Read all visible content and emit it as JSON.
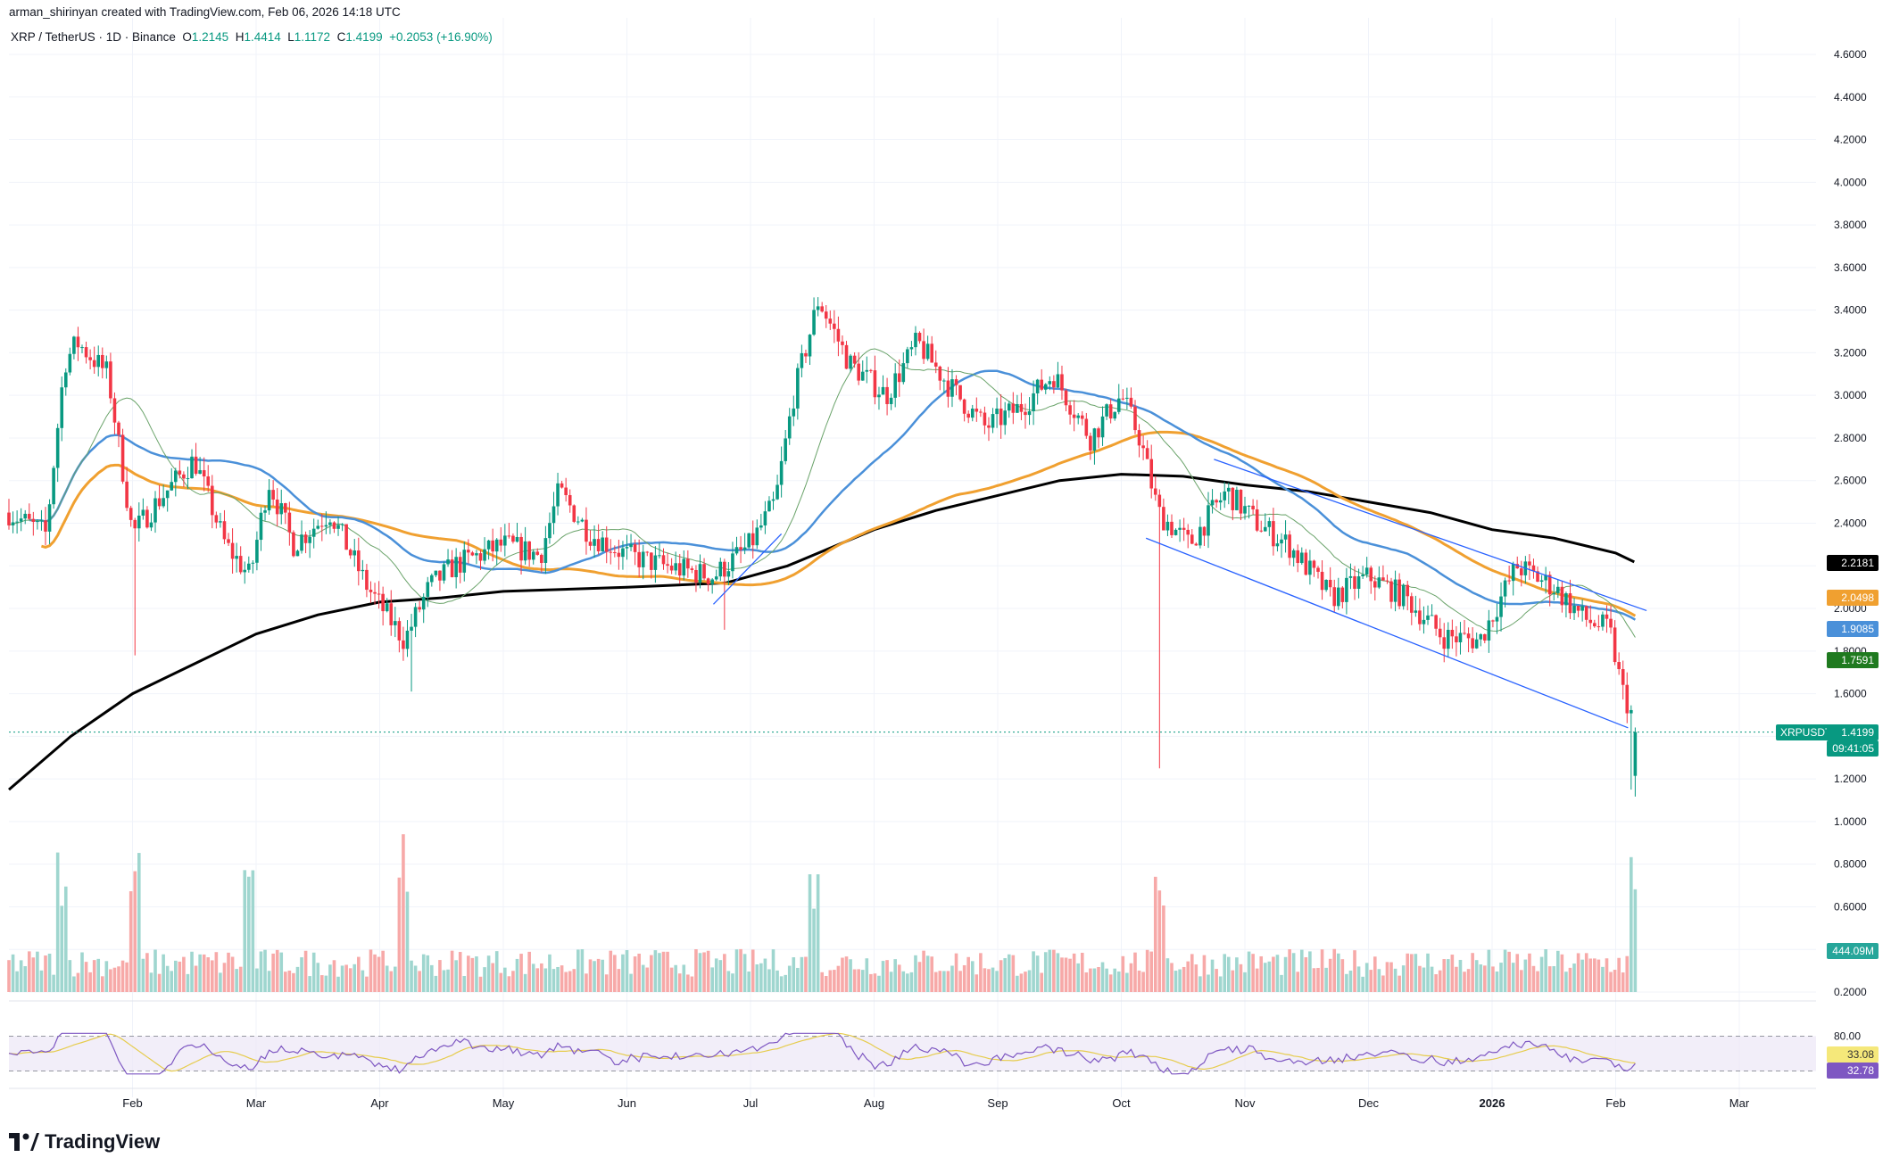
{
  "header": {
    "credit": "arman_shirinyan created with TradingView.com, Feb 06, 2026 14:18 UTC",
    "symbol_line": "XRP / TetherUS · 1D · Binance",
    "open_label": "O",
    "open": "1.2145",
    "high_label": "H",
    "high": "1.4414",
    "low_label": "L",
    "low": "1.1172",
    "close_label": "C",
    "close": "1.4199",
    "change": "+0.2053 (+16.90%)"
  },
  "brand": {
    "name": "TradingView"
  },
  "badges": {
    "ma200": "2.2181",
    "ma100": "2.0498",
    "ma50": "1.9085",
    "ma20": "1.7591",
    "symbol": "XRPUSDT",
    "price": "1.4199",
    "countdown": "09:41:05",
    "volume": "444.09M",
    "rsi_ma": "33.08",
    "rsi": "32.78"
  },
  "colors": {
    "up": "#089981",
    "down": "#f23645",
    "ma20": "#6aa36a",
    "ma50": "#4a90d9",
    "ma100": "#f0a030",
    "ma200": "#000000",
    "channel": "#2962ff",
    "rsi": "#7e57c2",
    "rsi_ma": "#e6cc4d"
  },
  "chart_data": {
    "type": "candlestick",
    "title": "XRP / TetherUS · 1D · Binance",
    "y_axis": {
      "ticks": [
        0.2,
        0.4,
        0.6,
        0.8,
        1.0,
        1.2,
        1.4,
        1.6,
        1.8,
        2.0,
        2.2,
        2.4,
        2.6,
        2.8,
        3.0,
        3.2,
        3.4,
        3.6,
        3.8,
        4.0,
        4.2,
        4.4,
        4.6
      ],
      "tick_labels": [
        "0.2000",
        "0.4000",
        "0.6000",
        "0.8000",
        "1.0000",
        "1.2000",
        "1.4000",
        "1.6000",
        "1.8000",
        "2.0000",
        "2.2000",
        "2.4000",
        "2.6000",
        "2.8000",
        "3.0000",
        "3.2000",
        "3.4000",
        "3.6000",
        "3.8000",
        "4.0000",
        "4.2000",
        "4.4000",
        "4.6000"
      ],
      "range": [
        0.2,
        4.6
      ]
    },
    "x_axis": {
      "tick_labels": [
        "Feb",
        "Mar",
        "Apr",
        "May",
        "Jun",
        "Jul",
        "Aug",
        "Sep",
        "Oct",
        "Nov",
        "Dec",
        "2026",
        "Feb",
        "Mar"
      ],
      "tick_months": [
        1,
        2,
        3,
        4,
        5,
        6,
        7,
        8,
        9,
        10,
        11,
        12,
        13,
        14
      ],
      "range_months": [
        0.0,
        14.5
      ]
    },
    "price_anchors": [
      {
        "m": 0.0,
        "p": 2.45
      },
      {
        "m": 0.3,
        "p": 2.35
      },
      {
        "m": 0.45,
        "p": 3.15
      },
      {
        "m": 0.55,
        "p": 3.25
      },
      {
        "m": 0.8,
        "p": 3.1
      },
      {
        "m": 1.0,
        "p": 2.35
      },
      {
        "m": 1.2,
        "p": 2.5
      },
      {
        "m": 1.5,
        "p": 2.7
      },
      {
        "m": 1.75,
        "p": 2.3
      },
      {
        "m": 1.95,
        "p": 2.15
      },
      {
        "m": 2.1,
        "p": 2.6
      },
      {
        "m": 2.3,
        "p": 2.3
      },
      {
        "m": 2.6,
        "p": 2.45
      },
      {
        "m": 2.9,
        "p": 2.1
      },
      {
        "m": 3.2,
        "p": 1.85
      },
      {
        "m": 3.4,
        "p": 2.1
      },
      {
        "m": 3.6,
        "p": 2.2
      },
      {
        "m": 4.0,
        "p": 2.3
      },
      {
        "m": 4.3,
        "p": 2.25
      },
      {
        "m": 4.45,
        "p": 2.55
      },
      {
        "m": 4.7,
        "p": 2.35
      },
      {
        "m": 5.0,
        "p": 2.25
      },
      {
        "m": 5.3,
        "p": 2.2
      },
      {
        "m": 5.7,
        "p": 2.15
      },
      {
        "m": 6.0,
        "p": 2.3
      },
      {
        "m": 6.2,
        "p": 2.5
      },
      {
        "m": 6.35,
        "p": 3.0
      },
      {
        "m": 6.55,
        "p": 3.45
      },
      {
        "m": 6.8,
        "p": 3.15
      },
      {
        "m": 7.1,
        "p": 3.0
      },
      {
        "m": 7.35,
        "p": 3.25
      },
      {
        "m": 7.6,
        "p": 3.05
      },
      {
        "m": 7.9,
        "p": 2.85
      },
      {
        "m": 8.2,
        "p": 2.95
      },
      {
        "m": 8.45,
        "p": 3.1
      },
      {
        "m": 8.75,
        "p": 2.8
      },
      {
        "m": 9.0,
        "p": 3.0
      },
      {
        "m": 9.15,
        "p": 2.8
      },
      {
        "m": 9.3,
        "p": 2.45
      },
      {
        "m": 9.55,
        "p": 2.3
      },
      {
        "m": 9.85,
        "p": 2.55
      },
      {
        "m": 10.1,
        "p": 2.4
      },
      {
        "m": 10.35,
        "p": 2.3
      },
      {
        "m": 10.7,
        "p": 2.05
      },
      {
        "m": 11.0,
        "p": 2.15
      },
      {
        "m": 11.3,
        "p": 2.05
      },
      {
        "m": 11.6,
        "p": 1.87
      },
      {
        "m": 11.9,
        "p": 1.85
      },
      {
        "m": 12.2,
        "p": 2.2
      },
      {
        "m": 12.5,
        "p": 2.1
      },
      {
        "m": 12.75,
        "p": 1.95
      },
      {
        "m": 12.95,
        "p": 1.9
      },
      {
        "m": 13.05,
        "p": 1.62
      },
      {
        "m": 13.12,
        "p": 1.52
      },
      {
        "m": 13.17,
        "p": 1.42
      }
    ],
    "spikes": [
      {
        "m": 1.03,
        "low": 1.78
      },
      {
        "m": 3.25,
        "low": 1.61
      },
      {
        "m": 9.32,
        "low": 1.25
      },
      {
        "m": 5.8,
        "low": 1.9
      }
    ],
    "channel_lines": [
      {
        "m1": 9.2,
        "p1": 2.33,
        "m2": 13.1,
        "p2": 1.44
      },
      {
        "m1": 9.75,
        "p1": 2.7,
        "m2": 13.25,
        "p2": 1.99
      },
      {
        "m1": 5.7,
        "p1": 2.02,
        "m2": 6.25,
        "p2": 2.35
      }
    ],
    "moving_averages": [
      {
        "name": "MA20",
        "last": 1.7591
      },
      {
        "name": "MA50",
        "last": 1.9085
      },
      {
        "name": "MA100",
        "last": 2.0498
      },
      {
        "name": "MA200",
        "last": 2.2181
      }
    ],
    "ma200_path": [
      {
        "m": 0.0,
        "p": 1.15
      },
      {
        "m": 0.5,
        "p": 1.4
      },
      {
        "m": 1.0,
        "p": 1.6
      },
      {
        "m": 1.5,
        "p": 1.74
      },
      {
        "m": 2.0,
        "p": 1.88
      },
      {
        "m": 2.5,
        "p": 1.97
      },
      {
        "m": 3.0,
        "p": 2.03
      },
      {
        "m": 3.5,
        "p": 2.05
      },
      {
        "m": 4.0,
        "p": 2.08
      },
      {
        "m": 5.0,
        "p": 2.1
      },
      {
        "m": 5.8,
        "p": 2.12
      },
      {
        "m": 6.3,
        "p": 2.2
      },
      {
        "m": 7.0,
        "p": 2.37
      },
      {
        "m": 7.5,
        "p": 2.46
      },
      {
        "m": 8.0,
        "p": 2.53
      },
      {
        "m": 8.5,
        "p": 2.6
      },
      {
        "m": 9.0,
        "p": 2.63
      },
      {
        "m": 9.5,
        "p": 2.62
      },
      {
        "m": 10.0,
        "p": 2.58
      },
      {
        "m": 10.5,
        "p": 2.55
      },
      {
        "m": 11.0,
        "p": 2.5
      },
      {
        "m": 11.5,
        "p": 2.45
      },
      {
        "m": 12.0,
        "p": 2.37
      },
      {
        "m": 12.5,
        "p": 2.33
      },
      {
        "m": 13.0,
        "p": 2.26
      },
      {
        "m": 13.15,
        "p": 2.2181
      }
    ],
    "volume": {
      "last": "444.09M",
      "spike_months": [
        0.42,
        1.03,
        1.95,
        3.2,
        6.5,
        9.32,
        13.15
      ]
    },
    "rsi": {
      "levels": [
        80,
        20
      ],
      "last": 32.78,
      "ma_last": 33.08,
      "upper_label": "80.00"
    }
  }
}
